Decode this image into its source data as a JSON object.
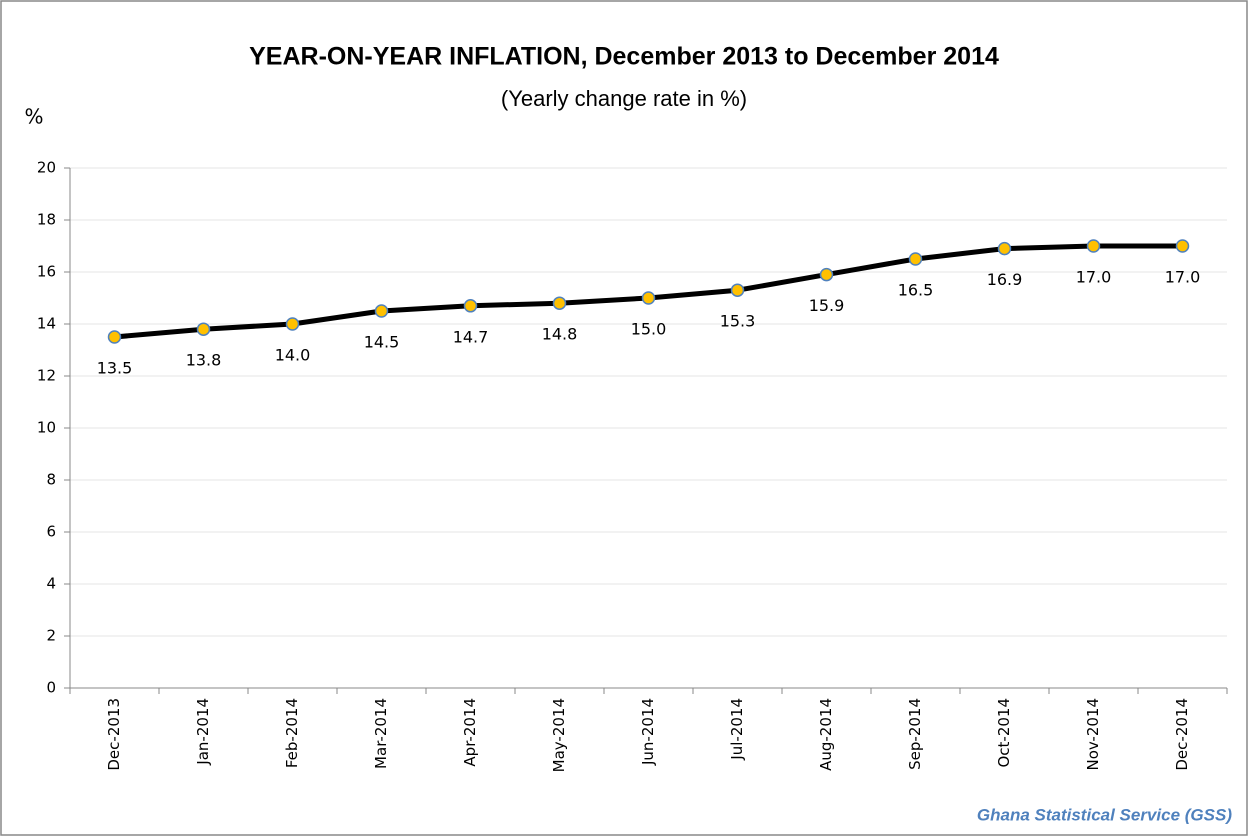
{
  "chart_data": {
    "type": "line",
    "title": "YEAR-ON-YEAR INFLATION, December 2013 to December 2014",
    "subtitle": "(Yearly change rate in %)",
    "y_label": "%",
    "source": "Ghana Statistical Service (GSS)",
    "categories": [
      "Dec-2013",
      "Jan-2014",
      "Feb-2014",
      "Mar-2014",
      "Apr-2014",
      "May-2014",
      "Jun-2014",
      "Jul-2014",
      "Aug-2014",
      "Sep-2014",
      "Oct-2014",
      "Nov-2014",
      "Dec-2014"
    ],
    "series": [
      {
        "name": "Year-on-year inflation",
        "color": "#000000",
        "marker_color": "#ffc000",
        "marker_edge": "#4f81bd",
        "values": [
          13.5,
          13.8,
          14.0,
          14.5,
          14.7,
          14.8,
          15.0,
          15.3,
          15.9,
          16.5,
          16.9,
          17.0,
          17.0
        ],
        "value_labels": [
          "13.5",
          "13.8",
          "14.0",
          "14.5",
          "14.7",
          "14.8",
          "15.0",
          "15.3",
          "15.9",
          "16.5",
          "16.9",
          "17.0",
          "17.0"
        ]
      }
    ],
    "ylim": [
      0,
      20
    ],
    "yticks": [
      0,
      2,
      4,
      6,
      8,
      10,
      12,
      14,
      16,
      18,
      20
    ],
    "grid": true
  }
}
